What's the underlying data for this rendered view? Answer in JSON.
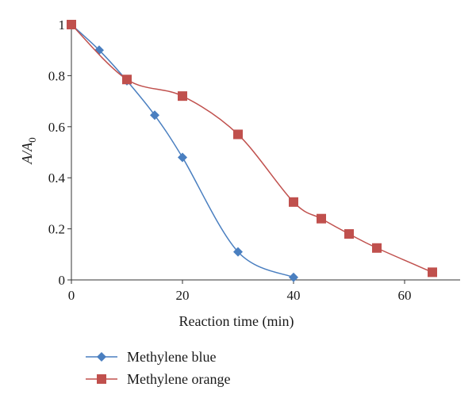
{
  "chart_data": {
    "type": "line",
    "title": "",
    "xlabel": "Reaction time (min)",
    "ylabel": "A/A0",
    "ylabel_main": "A/A",
    "ylabel_sub": "0",
    "xlim": [
      0,
      70
    ],
    "ylim": [
      0,
      1
    ],
    "xticks": [
      "0",
      "20",
      "40",
      "60"
    ],
    "xtick_values": [
      0,
      20,
      40,
      60
    ],
    "yticks": [
      "0",
      "0.2",
      "0.4",
      "0.6",
      "0.8",
      "1"
    ],
    "ytick_values": [
      0,
      0.2,
      0.4,
      0.6,
      0.8,
      1
    ],
    "grid": false,
    "smooth": true,
    "legend_position": "bottom-left",
    "series": [
      {
        "name": "Methylene blue",
        "color": "#4a7fc0",
        "marker": "diamond",
        "x": [
          0,
          5,
          10,
          15,
          20,
          30,
          40
        ],
        "y": [
          1.0,
          0.9,
          0.78,
          0.645,
          0.48,
          0.11,
          0.01
        ]
      },
      {
        "name": "Methylene orange",
        "color": "#c0504d",
        "marker": "square",
        "x": [
          0,
          10,
          20,
          30,
          40,
          45,
          50,
          55,
          65
        ],
        "y": [
          1.0,
          0.785,
          0.72,
          0.57,
          0.305,
          0.24,
          0.18,
          0.125,
          0.03
        ]
      }
    ]
  }
}
